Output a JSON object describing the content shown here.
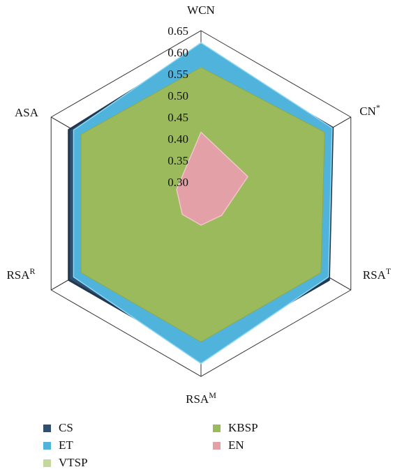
{
  "chart_data": {
    "type": "radar",
    "axes": [
      {
        "base": "WCN",
        "sup": ""
      },
      {
        "base": "CN",
        "sup": "*"
      },
      {
        "base": "RSA",
        "sup": "T"
      },
      {
        "base": "RSA",
        "sup": "M"
      },
      {
        "base": "RSA",
        "sup": "R"
      },
      {
        "base": "ASA",
        "sup": ""
      }
    ],
    "r_ticks": [
      "0.30",
      "0.35",
      "0.40",
      "0.45",
      "0.50",
      "0.55",
      "0.60",
      "0.65"
    ],
    "rlim": [
      0.25,
      0.65
    ],
    "series": [
      {
        "name": "CS",
        "color": "#2f4f6f",
        "values": [
          0.612,
          0.607,
          0.597,
          0.597,
          0.597,
          0.597
        ]
      },
      {
        "name": "ET",
        "color": "#4fb3dc",
        "values": [
          0.622,
          0.6,
          0.59,
          0.62,
          0.59,
          0.59
        ]
      },
      {
        "name": "VTSP",
        "color": "#c3d89a",
        "values": [
          0.565,
          0.56,
          0.56,
          0.56,
          0.56,
          0.56
        ]
      },
      {
        "name": "KBSP",
        "color": "#9aba5c",
        "values": [
          0.565,
          0.58,
          0.57,
          0.57,
          0.57,
          0.57
        ]
      },
      {
        "name": "EN",
        "color": "#e3a0a6",
        "values": [
          0.415,
          0.375,
          0.305,
          0.3,
          0.3,
          0.315
        ]
      }
    ],
    "legend": [
      {
        "name": "CS",
        "color": "#2f4f6f"
      },
      {
        "name": "KBSP",
        "color": "#9aba5c"
      },
      {
        "name": "ET",
        "color": "#4fb3dc"
      },
      {
        "name": "EN",
        "color": "#e3a0a6"
      },
      {
        "name": "VTSP",
        "color": "#c3d89a"
      }
    ],
    "legend_placement": "bottom"
  }
}
